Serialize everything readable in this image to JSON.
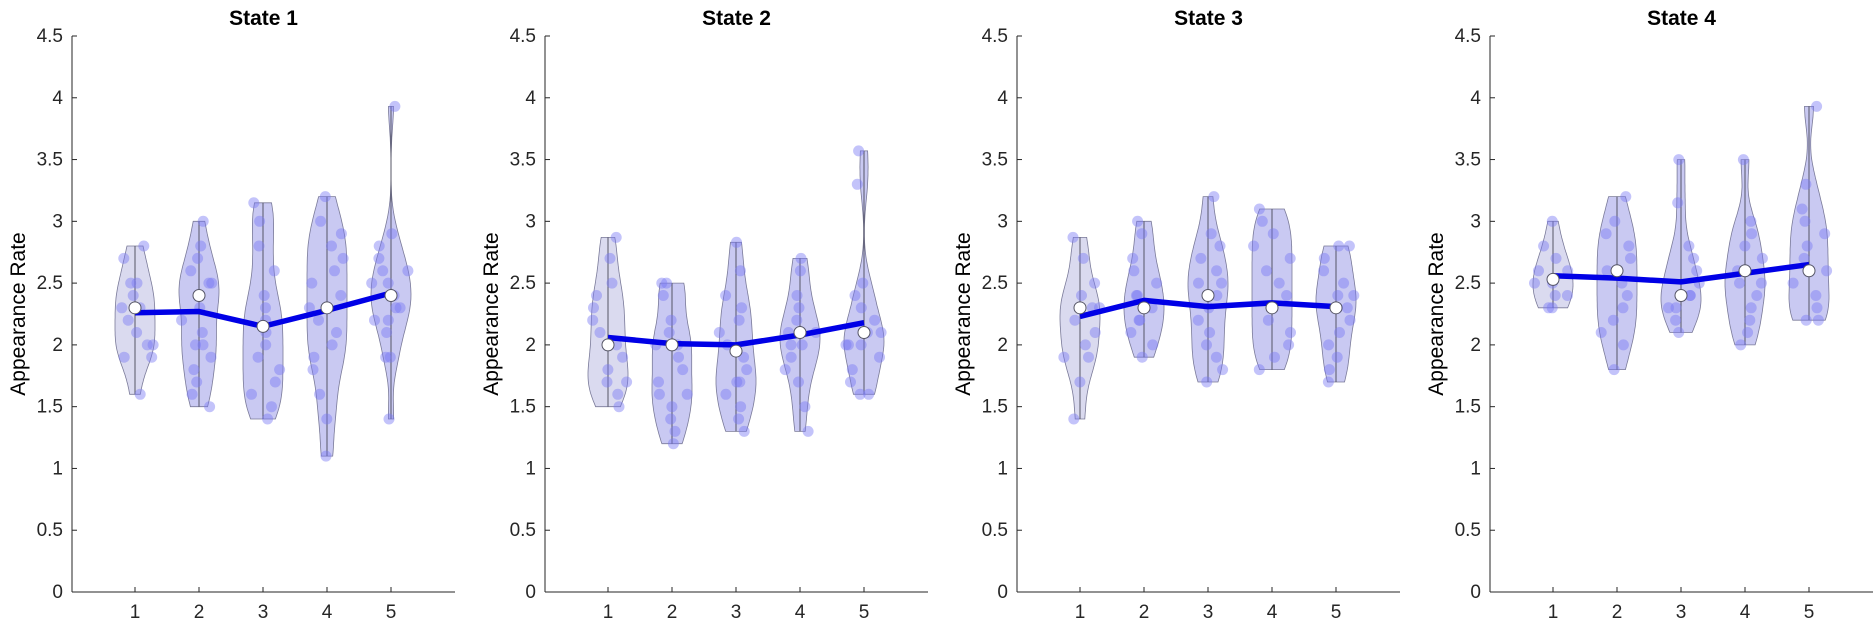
{
  "chart_data": [
    {
      "type": "violin",
      "title": "State 1",
      "ylabel": "Appearance Rate",
      "xlabel": "",
      "categories": [
        "1",
        "2",
        "3",
        "4",
        "5"
      ],
      "ylim": [
        0,
        4.5
      ],
      "yticks": [
        "0",
        "0.5",
        "1",
        "1.5",
        "2",
        "2.5",
        "3",
        "3.5",
        "4",
        "4.5"
      ],
      "median_markers": [
        2.3,
        2.4,
        2.15,
        2.3,
        2.4
      ],
      "mean_line": [
        2.26,
        2.27,
        2.15,
        2.28,
        2.42
      ],
      "violin_ranges": [
        [
          1.6,
          2.8
        ],
        [
          1.5,
          3.0
        ],
        [
          1.4,
          3.15
        ],
        [
          1.1,
          3.2
        ],
        [
          1.4,
          3.93
        ]
      ],
      "points": [
        [
          2.8,
          2.7,
          2.5,
          2.5,
          2.4,
          2.3,
          2.3,
          2.2,
          2.1,
          2.0,
          2.0,
          1.9,
          1.9,
          1.6
        ],
        [
          3.0,
          2.8,
          2.7,
          2.6,
          2.5,
          2.5,
          2.4,
          2.4,
          2.3,
          2.2,
          2.1,
          2.0,
          2.0,
          1.9,
          1.8,
          1.7,
          1.6,
          1.5
        ],
        [
          3.15,
          3.0,
          2.8,
          2.6,
          2.4,
          2.3,
          2.2,
          2.1,
          2.0,
          1.9,
          1.8,
          1.7,
          1.6,
          1.5,
          1.4
        ],
        [
          3.2,
          3.0,
          2.9,
          2.8,
          2.7,
          2.6,
          2.5,
          2.4,
          2.3,
          2.2,
          2.1,
          2.0,
          1.9,
          1.8,
          1.6,
          1.4,
          1.1
        ],
        [
          3.93,
          2.9,
          2.8,
          2.7,
          2.6,
          2.6,
          2.5,
          2.5,
          2.4,
          2.4,
          2.3,
          2.3,
          2.2,
          2.2,
          2.1,
          1.9,
          1.9,
          1.4
        ]
      ]
    },
    {
      "type": "violin",
      "title": "State 2",
      "ylabel": "Appearance Rate",
      "xlabel": "",
      "categories": [
        "1",
        "2",
        "3",
        "4",
        "5"
      ],
      "ylim": [
        0,
        4.5
      ],
      "yticks": [
        "0",
        "0.5",
        "1",
        "1.5",
        "2",
        "2.5",
        "3",
        "3.5",
        "4",
        "4.5"
      ],
      "median_markers": [
        2.0,
        2.0,
        1.95,
        2.1,
        2.1
      ],
      "mean_line": [
        2.06,
        2.01,
        2.0,
        2.08,
        2.18
      ],
      "violin_ranges": [
        [
          1.5,
          2.87
        ],
        [
          1.2,
          2.5
        ],
        [
          1.3,
          2.83
        ],
        [
          1.3,
          2.7
        ],
        [
          1.6,
          3.57
        ]
      ],
      "points": [
        [
          2.87,
          2.7,
          2.5,
          2.4,
          2.3,
          2.2,
          2.1,
          2.0,
          1.9,
          1.8,
          1.7,
          1.7,
          1.6,
          1.5
        ],
        [
          2.5,
          2.5,
          2.4,
          2.2,
          2.1,
          2.0,
          2.0,
          1.9,
          1.8,
          1.7,
          1.6,
          1.6,
          1.5,
          1.4,
          1.3,
          1.2
        ],
        [
          2.83,
          2.6,
          2.4,
          2.3,
          2.2,
          2.1,
          2.0,
          1.9,
          1.8,
          1.7,
          1.7,
          1.6,
          1.5,
          1.4,
          1.3
        ],
        [
          2.7,
          2.6,
          2.4,
          2.3,
          2.2,
          2.1,
          2.1,
          2.0,
          2.0,
          1.9,
          1.8,
          1.7,
          1.5,
          1.3
        ],
        [
          3.57,
          3.3,
          2.5,
          2.4,
          2.3,
          2.2,
          2.1,
          2.1,
          2.0,
          2.0,
          2.0,
          1.9,
          1.8,
          1.7,
          1.6,
          1.6
        ]
      ]
    },
    {
      "type": "violin",
      "title": "State 3",
      "ylabel": "Appearance Rate",
      "xlabel": "",
      "categories": [
        "1",
        "2",
        "3",
        "4",
        "5"
      ],
      "ylim": [
        0,
        4.5
      ],
      "yticks": [
        "0",
        "0.5",
        "1",
        "1.5",
        "2",
        "2.5",
        "3",
        "3.5",
        "4",
        "4.5"
      ],
      "median_markers": [
        2.3,
        2.3,
        2.4,
        2.3,
        2.3
      ],
      "mean_line": [
        2.23,
        2.36,
        2.31,
        2.34,
        2.31
      ],
      "violin_ranges": [
        [
          1.4,
          2.87
        ],
        [
          1.9,
          3.0
        ],
        [
          1.7,
          3.2
        ],
        [
          1.8,
          3.1
        ],
        [
          1.7,
          2.8
        ]
      ],
      "points": [
        [
          2.87,
          2.7,
          2.5,
          2.4,
          2.3,
          2.3,
          2.2,
          2.1,
          2.0,
          1.9,
          1.9,
          1.7,
          1.4
        ],
        [
          3.0,
          2.9,
          2.7,
          2.6,
          2.5,
          2.4,
          2.4,
          2.3,
          2.2,
          2.2,
          2.1,
          2.0,
          1.9
        ],
        [
          3.2,
          2.9,
          2.8,
          2.7,
          2.6,
          2.5,
          2.5,
          2.4,
          2.3,
          2.2,
          2.1,
          2.0,
          1.9,
          1.8,
          1.7
        ],
        [
          3.1,
          3.0,
          2.9,
          2.8,
          2.7,
          2.6,
          2.5,
          2.4,
          2.3,
          2.2,
          2.1,
          2.0,
          1.9,
          1.8
        ],
        [
          2.8,
          2.8,
          2.7,
          2.6,
          2.5,
          2.4,
          2.4,
          2.3,
          2.3,
          2.2,
          2.1,
          2.0,
          1.9,
          1.8,
          1.7
        ]
      ]
    },
    {
      "type": "violin",
      "title": "State 4",
      "ylabel": "Appearance Rate",
      "xlabel": "",
      "categories": [
        "1",
        "2",
        "3",
        "4",
        "5"
      ],
      "ylim": [
        0,
        4.5
      ],
      "yticks": [
        "0",
        "0.5",
        "1",
        "1.5",
        "2",
        "2.5",
        "3",
        "3.5",
        "4",
        "4.5"
      ],
      "median_markers": [
        2.53,
        2.6,
        2.4,
        2.6,
        2.6
      ],
      "mean_line": [
        2.56,
        2.54,
        2.51,
        2.58,
        2.65
      ],
      "violin_ranges": [
        [
          2.3,
          3.0
        ],
        [
          1.8,
          3.2
        ],
        [
          2.1,
          3.5
        ],
        [
          2.0,
          3.5
        ],
        [
          2.2,
          3.93
        ]
      ],
      "points": [
        [
          3.0,
          2.8,
          2.7,
          2.6,
          2.6,
          2.5,
          2.5,
          2.4,
          2.4,
          2.3,
          2.3
        ],
        [
          3.2,
          3.0,
          2.9,
          2.8,
          2.7,
          2.6,
          2.5,
          2.4,
          2.3,
          2.2,
          2.1,
          2.0,
          1.8
        ],
        [
          3.5,
          3.15,
          2.8,
          2.7,
          2.6,
          2.5,
          2.4,
          2.4,
          2.3,
          2.3,
          2.2,
          2.1
        ],
        [
          3.5,
          3.0,
          2.9,
          2.8,
          2.7,
          2.6,
          2.5,
          2.5,
          2.4,
          2.3,
          2.2,
          2.1,
          2.0
        ],
        [
          3.93,
          3.3,
          3.1,
          3.0,
          2.9,
          2.8,
          2.7,
          2.6,
          2.5,
          2.4,
          2.3,
          2.2,
          2.2
        ]
      ]
    }
  ],
  "colors": {
    "violin_fill_light": "#d3d3ec",
    "violin_fill_dark": "#c0c0f0",
    "violin_edge": "#7a7a99",
    "point": "#7a7af5",
    "mean_line": "#0000e6",
    "axis": "#262626"
  }
}
